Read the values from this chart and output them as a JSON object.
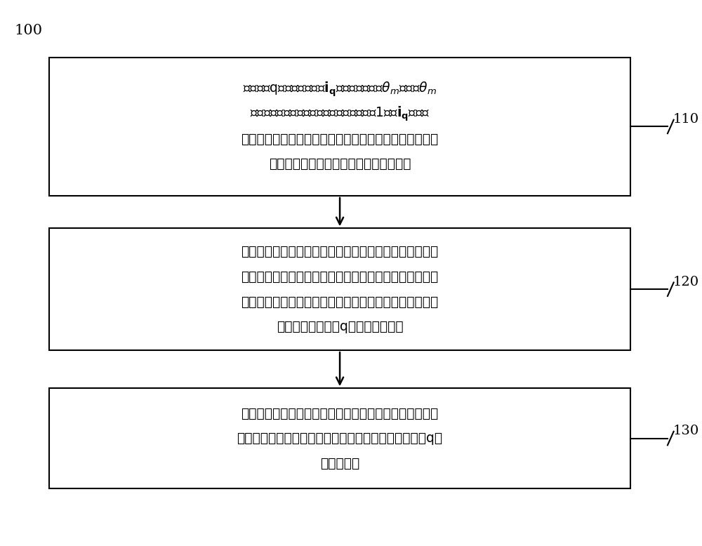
{
  "title_label": "100",
  "step_labels": [
    "110",
    "120",
    "130"
  ],
  "box1_lines": [
    "同步采集q轴电流反馈信号$\\mathbf{i_q}$及转子位置信号$\\boldsymbol{\\theta_m}$，基于$\\boldsymbol{\\theta_m}$",
    "确定转子所在位置区间，将该区间次数累加1并对$\\mathbf{i_q}$做同步",
    "平均，重复所述同步采集，直至各区间次数累加值大于阈",
    "值，其中，所有区间无重叠构成转子一周"
  ],
  "box2_lines": [
    "对以正向或反向旋转方向排列的各区间对应的同步平均结",
    "果值进行傅里叶变换，得到电流信号关于位置的频域特征",
    "信息，从该频率特征信息中确定待补偿空间频率分量的幅",
    "值和相角，以构建q轴电流补偿函数"
  ],
  "box3_lines": [
    "基于待补偿时刻的电机转速及转子位置信息，预估电机转",
    "子实际补偿时刻的位置并输入所述电流补偿函数，得到q轴",
    "电流补偿值"
  ],
  "background_color": "#ffffff",
  "box_edge_color": "#000000",
  "text_color": "#000000",
  "arrow_color": "#000000",
  "font_size": 13.5,
  "label_font_size": 14
}
